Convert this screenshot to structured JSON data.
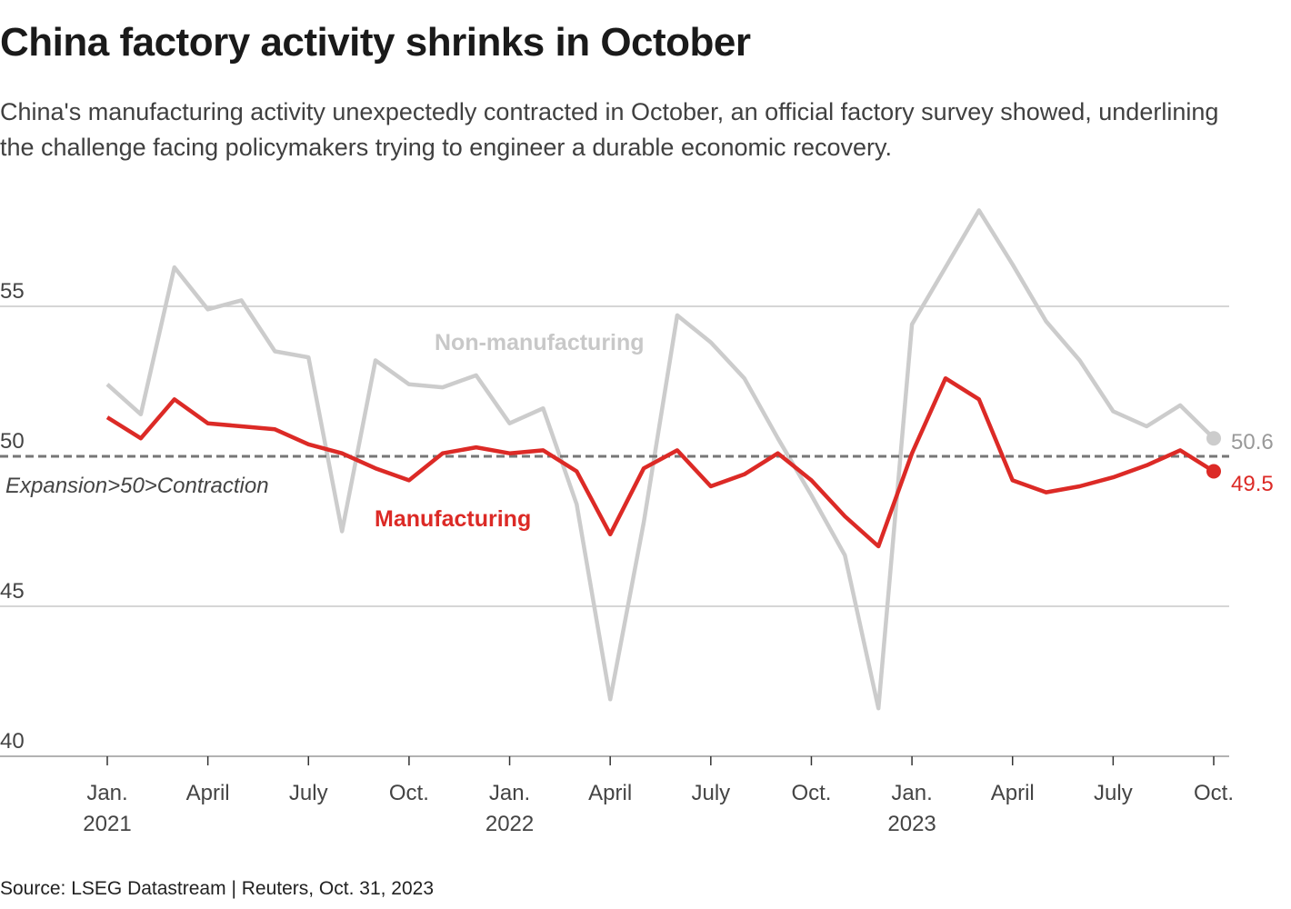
{
  "header": {
    "title": "China factory activity shrinks in October",
    "subtitle": "China's manufacturing activity unexpectedly contracted in October, an official factory survey showed, underlining the challenge facing policymakers trying to engineer a durable economic recovery."
  },
  "footer": {
    "source": "Source: LSEG Datastream | Reuters, Oct. 31, 2023"
  },
  "chart_data": {
    "type": "line",
    "x_start": "2021-01",
    "x_end": "2023-10",
    "ylim": [
      40,
      58.5
    ],
    "yticks": [
      40,
      45,
      50,
      55
    ],
    "grid": true,
    "xtick_labels": [
      {
        "month": 0,
        "label": "Jan.",
        "year": "2021"
      },
      {
        "month": 3,
        "label": "April",
        "year": ""
      },
      {
        "month": 6,
        "label": "July",
        "year": ""
      },
      {
        "month": 9,
        "label": "Oct.",
        "year": ""
      },
      {
        "month": 12,
        "label": "Jan.",
        "year": "2022"
      },
      {
        "month": 15,
        "label": "April",
        "year": ""
      },
      {
        "month": 18,
        "label": "July",
        "year": ""
      },
      {
        "month": 21,
        "label": "Oct.",
        "year": ""
      },
      {
        "month": 24,
        "label": "Jan.",
        "year": "2023"
      },
      {
        "month": 27,
        "label": "April",
        "year": ""
      },
      {
        "month": 30,
        "label": "July",
        "year": ""
      },
      {
        "month": 33,
        "label": "Oct.",
        "year": ""
      }
    ],
    "reference_line": {
      "value": 50,
      "label": "Expansion>50>Contraction"
    },
    "series": [
      {
        "name": "Non-manufacturing",
        "color": "#cccccc",
        "end_label": "50.6",
        "values": [
          52.4,
          51.4,
          56.3,
          54.9,
          55.2,
          53.5,
          53.3,
          47.5,
          53.2,
          52.4,
          52.3,
          52.7,
          51.1,
          51.6,
          48.4,
          41.9,
          47.8,
          54.7,
          53.8,
          52.6,
          50.6,
          48.7,
          46.7,
          41.6,
          54.4,
          56.3,
          58.2,
          56.4,
          54.5,
          53.2,
          51.5,
          51.0,
          51.7,
          50.6
        ]
      },
      {
        "name": "Manufacturing",
        "color": "#dc2a26",
        "end_label": "49.5",
        "values": [
          51.3,
          50.6,
          51.9,
          51.1,
          51.0,
          50.9,
          50.4,
          50.1,
          49.6,
          49.2,
          50.1,
          50.3,
          50.1,
          50.2,
          49.5,
          47.4,
          49.6,
          50.2,
          49.0,
          49.4,
          50.1,
          49.2,
          48.0,
          47.0,
          50.1,
          52.6,
          51.9,
          49.2,
          48.8,
          49.0,
          49.3,
          49.7,
          50.2,
          49.5
        ]
      }
    ]
  }
}
